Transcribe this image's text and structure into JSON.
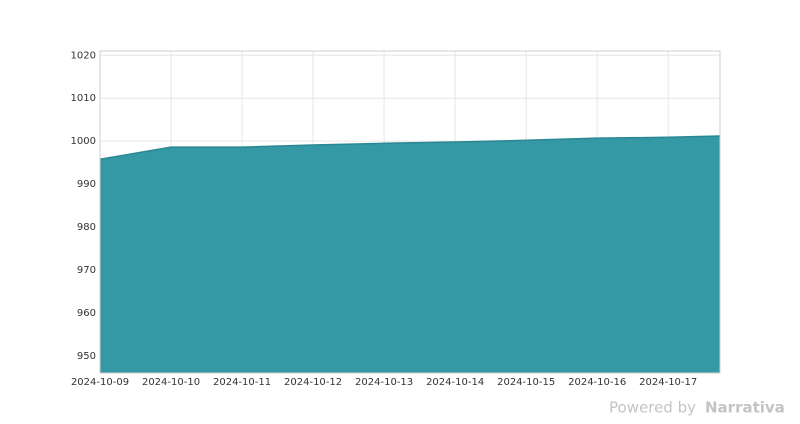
{
  "chart_data": {
    "type": "area",
    "x": [
      "2024-10-09",
      "2024-10-10",
      "2024-10-11",
      "2024-10-12",
      "2024-10-13",
      "2024-10-14",
      "2024-10-15",
      "2024-10-16",
      "2024-10-17",
      "2024-10-17 17:30"
    ],
    "values": [
      995.8,
      998.6,
      998.6,
      999.1,
      999.5,
      999.8,
      1000.2,
      1000.7,
      1000.9,
      1001.2
    ],
    "color": "#3598a5",
    "line_color": "#2a8793",
    "xlim": [
      "2024-10-09",
      "2024-10-17 17:30"
    ],
    "xticks": [
      "2024-10-09",
      "2024-10-10",
      "2024-10-11",
      "2024-10-12",
      "2024-10-13",
      "2024-10-14",
      "2024-10-15",
      "2024-10-16",
      "2024-10-17"
    ],
    "ylim": [
      946,
      1021
    ],
    "yticks": [
      950,
      960,
      970,
      980,
      990,
      1000,
      1010,
      1020
    ],
    "grid": true
  },
  "footer": {
    "powered": "Powered by",
    "brand": "Narrativa"
  }
}
